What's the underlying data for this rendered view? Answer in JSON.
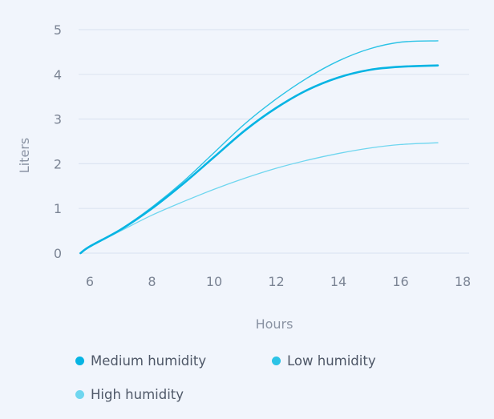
{
  "chart_data": {
    "type": "line",
    "title": "",
    "xlabel": "Hours",
    "ylabel": "Liters",
    "xlim": [
      5.5,
      18
    ],
    "ylim": [
      0,
      5
    ],
    "xticks": [
      6,
      8,
      10,
      12,
      14,
      16,
      18
    ],
    "yticks": [
      0,
      1,
      2,
      3,
      4,
      5
    ],
    "grid": "horizontal",
    "legend_position": "bottom",
    "series": [
      {
        "name": "Medium humidity",
        "color": "#06b4e3",
        "x": [
          5.7,
          6,
          7,
          8,
          9,
          10,
          11,
          12,
          13,
          14,
          15,
          16,
          17.2
        ],
        "values": [
          0,
          0.15,
          0.53,
          1.0,
          1.55,
          2.15,
          2.75,
          3.25,
          3.65,
          3.93,
          4.1,
          4.17,
          4.2
        ]
      },
      {
        "name": "Low humidity",
        "color": "#2cc3e6",
        "x": [
          5.7,
          6,
          7,
          8,
          9,
          10,
          11,
          12,
          13,
          14,
          15,
          16,
          17.2
        ],
        "values": [
          0,
          0.15,
          0.54,
          1.03,
          1.6,
          2.25,
          2.9,
          3.45,
          3.92,
          4.3,
          4.57,
          4.72,
          4.75
        ]
      },
      {
        "name": "High humidity",
        "color": "#6fd6ef",
        "x": [
          5.7,
          6,
          7,
          8,
          9,
          10,
          11,
          12,
          13,
          14,
          15,
          16,
          17.2
        ],
        "values": [
          0,
          0.14,
          0.5,
          0.85,
          1.15,
          1.43,
          1.68,
          1.9,
          2.08,
          2.23,
          2.35,
          2.43,
          2.47
        ]
      }
    ]
  }
}
